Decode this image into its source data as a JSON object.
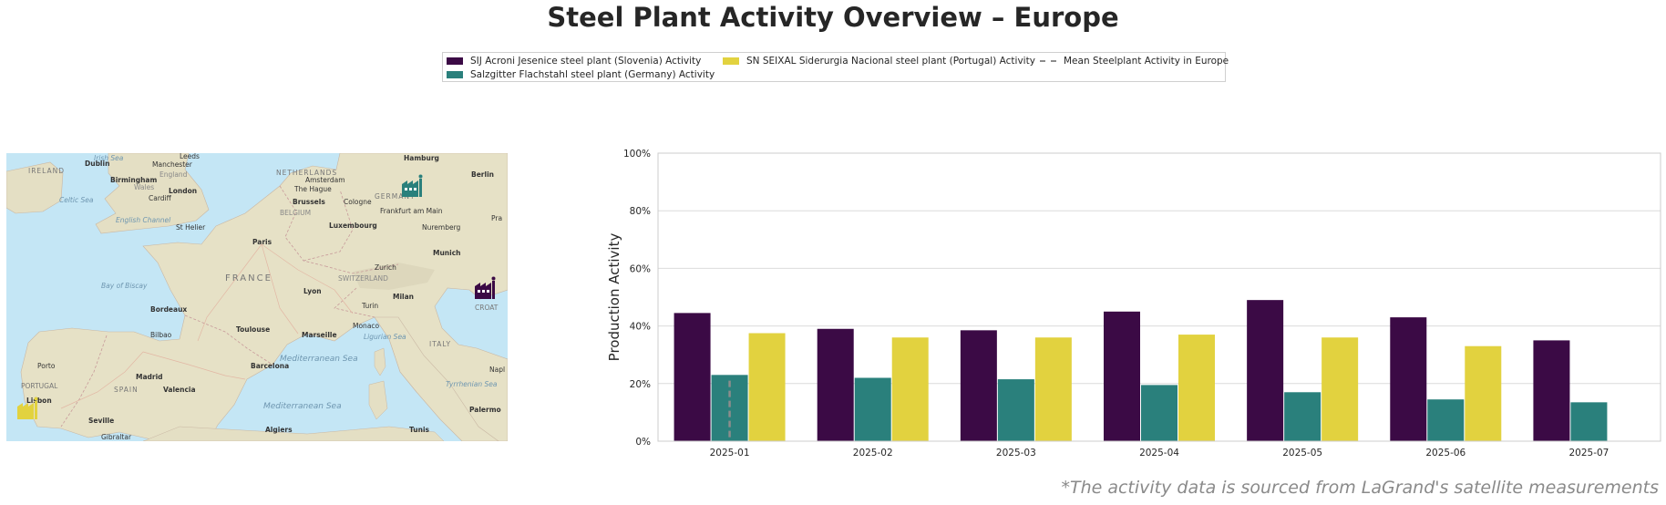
{
  "title": "Steel Plant Activity Overview – Europe",
  "footnote": "*The activity data is sourced from LaGrand's satellite measurements",
  "legend": {
    "items": [
      {
        "label": "SIJ Acroni Jesenice steel plant (Slovenia) Activity",
        "color": "#3b0a45"
      },
      {
        "label": "Salzgitter Flachstahl steel plant (Germany) Activity",
        "color": "#2a807c"
      },
      {
        "label": "SN SEIXAL Siderurgia Nacional steel plant (Portugal) Activity",
        "color": "#e2d23f"
      },
      {
        "label": "Mean Steelplant Activity in Europe",
        "color": "#8c8c8c",
        "style": "dashed"
      }
    ]
  },
  "map": {
    "labels": {
      "irish_sea": "Irish Sea",
      "dublin": "Dublin",
      "ireland": "IRELAND",
      "leeds": "Leeds",
      "manchester": "Manchester",
      "england": "England",
      "birmingham": "Birmingham",
      "wales": "Wales",
      "london": "London",
      "cardiff": "Cardiff",
      "celtic_sea": "Celtic Sea",
      "english_channel": "English Channel",
      "st_helier": "St Helier",
      "netherlands": "NETHERLANDS",
      "amsterdam": "Amsterdam",
      "the_hague": "The Hague",
      "hamburg": "Hamburg",
      "berlin": "Berlin",
      "germany": "GERMANY",
      "brussels": "Brussels",
      "cologne": "Cologne",
      "belgium": "BELGIUM",
      "frankfurt": "Frankfurt am Main",
      "luxembourg": "Luxembourg",
      "nuremberg": "Nuremberg",
      "prague": "Pra",
      "paris": "Paris",
      "munich": "Munich",
      "france": "FRANCE",
      "bay_of_biscay": "Bay of Biscay",
      "zurich": "Zurich",
      "switzerland": "SWITZERLAND",
      "lyon": "Lyon",
      "milan": "Milan",
      "turin": "Turin",
      "bordeaux": "Bordeaux",
      "croatia": "CROAT",
      "toulouse": "Toulouse",
      "monaco": "Monaco",
      "marseille": "Marseille",
      "ligurian_sea": "Ligurian Sea",
      "bilbao": "Bilbao",
      "italy": "ITALY",
      "porto": "Porto",
      "mediterranean1": "Mediterranean Sea",
      "barcelona": "Barcelona",
      "madrid": "Madrid",
      "naples": "Napl",
      "portugal": "PORTUGAL",
      "spain": "SPAIN",
      "valencia": "Valencia",
      "tyrrhenian": "Tyrrhenian Sea",
      "lisbon": "Lisbon",
      "mediterranean2": "Mediterranean Sea",
      "palermo": "Palermo",
      "seville": "Seville",
      "algiers": "Algiers",
      "tunis": "Tunis",
      "gibraltar": "Gibraltar"
    },
    "markers": [
      {
        "plant": "Salzgitter Flachstahl",
        "color": "#2a807c"
      },
      {
        "plant": "SIJ Acroni Jesenice",
        "color": "#3b0a45"
      },
      {
        "plant": "SN SEIXAL Siderurgia Nacional",
        "color": "#e2d23f"
      }
    ]
  },
  "chart_data": {
    "type": "bar",
    "ylabel": "Production Activity",
    "xlabel": "",
    "categories": [
      "2025-01",
      "2025-02",
      "2025-03",
      "2025-04",
      "2025-05",
      "2025-06",
      "2025-07"
    ],
    "ylim": [
      0,
      100
    ],
    "yticks": [
      "0%",
      "20%",
      "40%",
      "60%",
      "80%",
      "100%"
    ],
    "grid": true,
    "series": [
      {
        "name": "SIJ Acroni Jesenice steel plant (Slovenia) Activity",
        "color": "#3b0a45",
        "values": [
          44.5,
          39,
          38.5,
          45,
          49,
          43,
          35
        ]
      },
      {
        "name": "Salzgitter Flachstahl steel plant (Germany) Activity",
        "color": "#2a807c",
        "values": [
          23,
          22,
          21.5,
          19.5,
          17,
          14.5,
          13.5
        ]
      },
      {
        "name": "SN SEIXAL Siderurgia Nacional steel plant (Portugal) Activity",
        "color": "#e2d23f",
        "values": [
          37.5,
          36,
          36,
          37,
          36,
          33,
          null
        ]
      }
    ],
    "mean_line": {
      "name": "Mean Steelplant Activity in Europe",
      "color": "#8c8c8c",
      "style": "dashed",
      "values": [
        21,
        null,
        null,
        null,
        null,
        null,
        null
      ]
    }
  }
}
